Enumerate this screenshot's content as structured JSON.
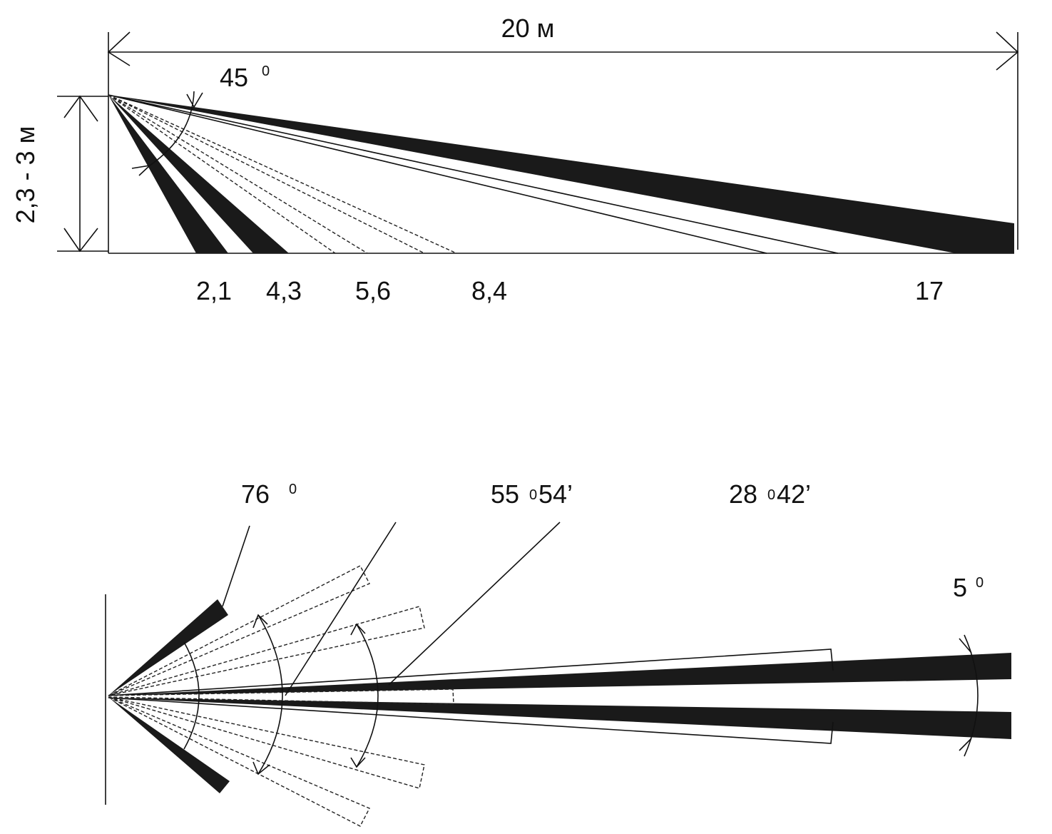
{
  "side_view": {
    "width_label": "20 м",
    "height_label": "2,3 - 3 м",
    "angle": {
      "value": "45",
      "degree": "0"
    },
    "distances": [
      "2,1",
      "4,3",
      "5,6",
      "8,4",
      "17"
    ]
  },
  "top_view": {
    "angles": [
      {
        "value": "76",
        "degree": "0"
      },
      {
        "value": "55",
        "degree": "0",
        "minutes": "54’"
      },
      {
        "value": "28",
        "degree": "0",
        "minutes": "42’"
      },
      {
        "value": "5",
        "degree": "0"
      }
    ]
  }
}
